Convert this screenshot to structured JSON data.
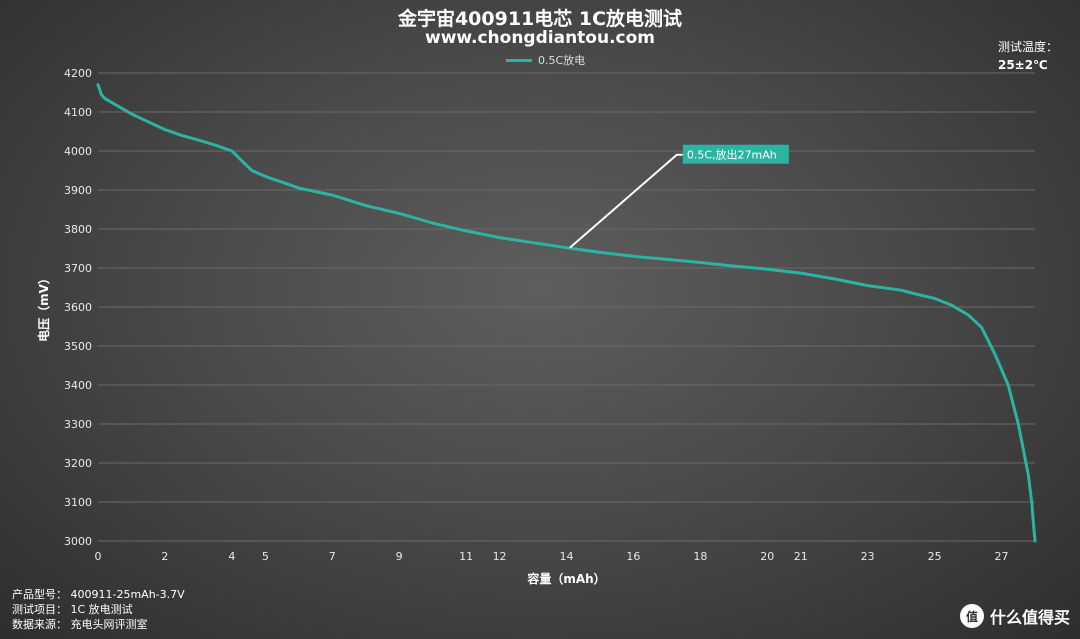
{
  "title": "金宇宙400911电芯 1C放电测试",
  "subtitle": "www.chongdiantou.com",
  "temperature": {
    "label": "测试温度：",
    "value": "25±2℃"
  },
  "info": {
    "model": "产品型号：  400911-25mAh-3.7V",
    "item": "测试项目：  1C 放电测试",
    "source": "数据来源：  充电头网评测室"
  },
  "brand": {
    "logo": "值",
    "text": "什么值得买"
  },
  "colors": {
    "series": "#2bb3a4",
    "grid": "#6a6a6a",
    "annotation_bg": "#2bb3a4"
  },
  "chart_data": {
    "type": "line",
    "title": "金宇宙400911电芯 1C放电测试",
    "xlabel": "容量（mAh）",
    "ylabel": "电压（mV）",
    "xlim": [
      0,
      28
    ],
    "ylim": [
      3000,
      4200
    ],
    "xticks": [
      0,
      2,
      4,
      5,
      7,
      9,
      11,
      12,
      14,
      16,
      18,
      20,
      21,
      23,
      25,
      27
    ],
    "xtick_labels": [
      "0",
      "2",
      "4",
      "5",
      "7",
      "9",
      "11",
      "12",
      "14",
      "16",
      "18",
      "20",
      "21",
      "23",
      "25",
      "27"
    ],
    "yticks": [
      3000,
      3100,
      3200,
      3300,
      3400,
      3500,
      3600,
      3700,
      3800,
      3900,
      4000,
      4100,
      4200
    ],
    "grid": true,
    "legend_position": "top-center",
    "series": [
      {
        "name": "0.5C放电",
        "x": [
          0,
          0.1,
          0.2,
          0.4,
          0.7,
          1.0,
          1.5,
          2.0,
          2.5,
          3.0,
          3.5,
          4.0,
          4.3,
          4.6,
          5.0,
          5.5,
          6.0,
          7.0,
          8.0,
          9.0,
          10.0,
          11.0,
          12.0,
          13.0,
          14.0,
          15.0,
          16.0,
          17.0,
          18.0,
          19.0,
          20.0,
          21.0,
          22.0,
          23.0,
          24.0,
          24.5,
          25.0,
          25.5,
          26.0,
          26.4,
          26.8,
          27.2,
          27.5,
          27.8,
          27.9,
          27.95,
          28.0
        ],
        "y": [
          4170,
          4145,
          4135,
          4125,
          4110,
          4095,
          4075,
          4055,
          4040,
          4028,
          4015,
          4000,
          3975,
          3950,
          3935,
          3920,
          3905,
          3887,
          3860,
          3840,
          3815,
          3795,
          3778,
          3765,
          3752,
          3740,
          3730,
          3722,
          3714,
          3705,
          3697,
          3687,
          3672,
          3655,
          3643,
          3632,
          3622,
          3605,
          3580,
          3548,
          3480,
          3400,
          3300,
          3170,
          3100,
          3050,
          3000
        ]
      }
    ],
    "annotations": [
      {
        "text": "0.5C,放出27mAh",
        "x": 14.1,
        "y": 3752
      }
    ]
  }
}
